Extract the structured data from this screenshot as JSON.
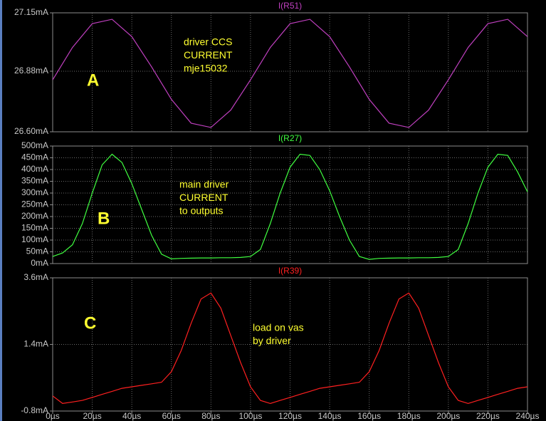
{
  "chart_data": [
    {
      "type": "line",
      "x": [
        0,
        10,
        20,
        30,
        40,
        50,
        60,
        70,
        80,
        90,
        100,
        110,
        120,
        130,
        140,
        150,
        160,
        170,
        180,
        190,
        200,
        210,
        220,
        230,
        240
      ],
      "series": [
        {
          "name": "I(R51)",
          "color": "#c040c0",
          "values": [
            26.84,
            26.99,
            27.1,
            27.12,
            27.04,
            26.9,
            26.75,
            26.64,
            26.62,
            26.7,
            26.84,
            26.99,
            27.1,
            27.12,
            27.04,
            26.9,
            26.75,
            26.64,
            26.62,
            26.7,
            26.84,
            26.99,
            27.1,
            27.12,
            27.04
          ]
        }
      ],
      "xlim": [
        0,
        240
      ],
      "ylim": [
        26.6,
        27.15
      ],
      "yticks": [
        {
          "value": 26.6,
          "label": "26.60mA"
        },
        {
          "value": 26.88,
          "label": "26.88mA"
        },
        {
          "value": 27.15,
          "label": "27.15mA"
        }
      ],
      "annotations": [
        "driver CCS",
        "CURRENT",
        "mje15032"
      ],
      "panel_label": "A"
    },
    {
      "type": "line",
      "x": [
        0,
        5,
        10,
        15,
        20,
        25,
        30,
        35,
        40,
        45,
        50,
        55,
        60,
        65,
        70,
        75,
        80,
        85,
        90,
        95,
        100,
        105,
        110,
        115,
        120,
        125,
        130,
        135,
        140,
        145,
        150,
        155,
        160,
        165,
        170,
        175,
        180,
        185,
        190,
        195,
        200,
        205,
        210,
        215,
        220,
        225,
        230,
        235,
        240
      ],
      "series": [
        {
          "name": "I(R27)",
          "color": "#40ff40",
          "values": [
            30,
            45,
            80,
            170,
            300,
            420,
            465,
            430,
            340,
            230,
            120,
            40,
            20,
            22,
            23,
            24,
            24,
            25,
            25,
            26,
            30,
            60,
            170,
            300,
            410,
            465,
            460,
            400,
            310,
            200,
            100,
            30,
            18,
            22,
            23,
            24,
            24,
            25,
            25,
            26,
            30,
            60,
            170,
            300,
            410,
            465,
            460,
            390,
            305
          ]
        }
      ],
      "xlim": [
        0,
        240
      ],
      "ylim": [
        0,
        500
      ],
      "yticks": [
        {
          "value": 0,
          "label": "0mA"
        },
        {
          "value": 50,
          "label": "50mA"
        },
        {
          "value": 100,
          "label": "100mA"
        },
        {
          "value": 150,
          "label": "150mA"
        },
        {
          "value": 200,
          "label": "200mA"
        },
        {
          "value": 250,
          "label": "250mA"
        },
        {
          "value": 300,
          "label": "300mA"
        },
        {
          "value": 350,
          "label": "350mA"
        },
        {
          "value": 400,
          "label": "400mA"
        },
        {
          "value": 450,
          "label": "450mA"
        },
        {
          "value": 500,
          "label": "500mA"
        }
      ],
      "annotations": [
        " main driver",
        " CURRENT",
        " to outputs"
      ],
      "panel_label": "B"
    },
    {
      "type": "line",
      "x": [
        0,
        5,
        10,
        15,
        20,
        25,
        30,
        35,
        40,
        45,
        50,
        55,
        60,
        65,
        70,
        75,
        80,
        85,
        90,
        95,
        100,
        105,
        110,
        115,
        120,
        125,
        130,
        135,
        140,
        145,
        150,
        155,
        160,
        165,
        170,
        175,
        180,
        185,
        190,
        195,
        200,
        205,
        210,
        215,
        220,
        225,
        230,
        235,
        240
      ],
      "series": [
        {
          "name": "I(R39)",
          "color": "#ff2020",
          "values": [
            -0.3,
            -0.55,
            -0.5,
            -0.45,
            -0.35,
            -0.25,
            -0.15,
            -0.05,
            0.0,
            0.05,
            0.1,
            0.15,
            0.5,
            1.2,
            2.1,
            2.9,
            3.1,
            2.6,
            1.7,
            0.8,
            0.0,
            -0.45,
            -0.55,
            -0.45,
            -0.35,
            -0.25,
            -0.15,
            -0.05,
            0.0,
            0.05,
            0.1,
            0.15,
            0.5,
            1.2,
            2.1,
            2.9,
            3.1,
            2.6,
            1.7,
            0.8,
            0.0,
            -0.45,
            -0.55,
            -0.45,
            -0.35,
            -0.25,
            -0.15,
            -0.05,
            0.0
          ]
        }
      ],
      "xlim": [
        0,
        240
      ],
      "xticks": [
        {
          "value": 0,
          "label": "0µs"
        },
        {
          "value": 20,
          "label": "20µs"
        },
        {
          "value": 40,
          "label": "40µs"
        },
        {
          "value": 60,
          "label": "60µs"
        },
        {
          "value": 80,
          "label": "80µs"
        },
        {
          "value": 100,
          "label": "100µs"
        },
        {
          "value": 120,
          "label": "120µs"
        },
        {
          "value": 140,
          "label": "140µs"
        },
        {
          "value": 160,
          "label": "160µs"
        },
        {
          "value": 180,
          "label": "180µs"
        },
        {
          "value": 200,
          "label": "200µs"
        },
        {
          "value": 220,
          "label": "220µs"
        },
        {
          "value": 240,
          "label": "240µs"
        }
      ],
      "ylim": [
        -0.8,
        3.6
      ],
      "yticks": [
        {
          "value": -0.8,
          "label": "-0.8mA"
        },
        {
          "value": 1.4,
          "label": "1.4mA"
        },
        {
          "value": 3.6,
          "label": "3.6mA"
        }
      ],
      "annotations": [
        "load on vas",
        "by driver"
      ],
      "panel_label": "C"
    }
  ]
}
